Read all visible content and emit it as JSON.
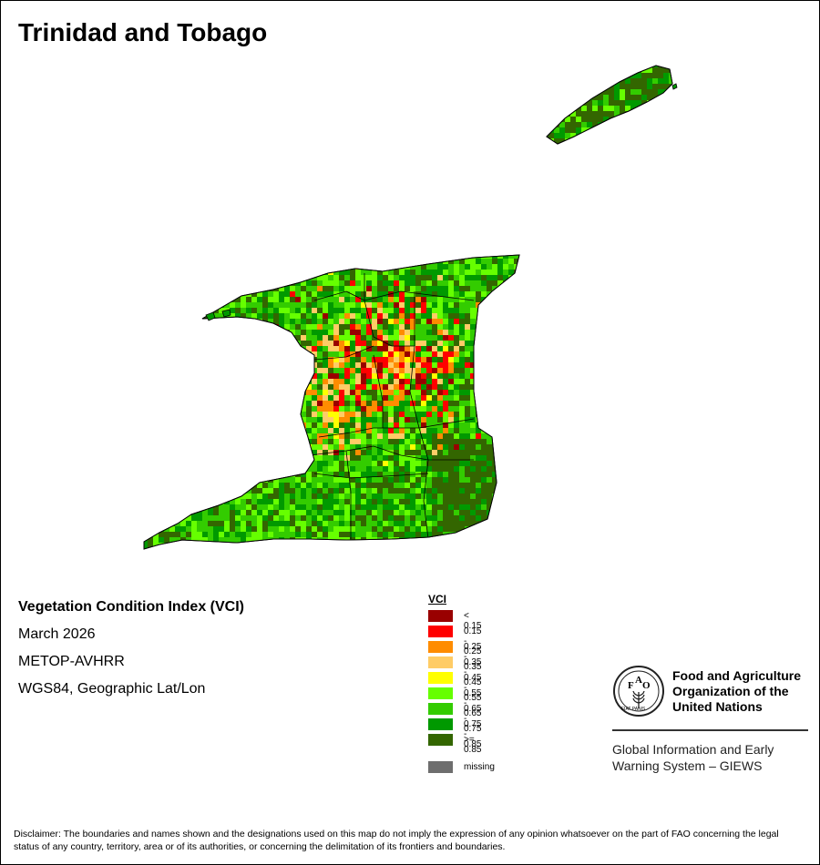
{
  "title": "Trinidad and Tobago",
  "info": {
    "index_name": "Vegetation Condition Index (VCI)",
    "period": "March 2026",
    "sensor": "METOP-AVHRR",
    "projection": "WGS84, Geographic Lat/Lon"
  },
  "legend": {
    "title": "VCI",
    "classes": [
      {
        "label": "< 0.15",
        "color": "#990000"
      },
      {
        "label": "0.15 - 0.25",
        "color": "#ff0000"
      },
      {
        "label": "0.25 - 0.35",
        "color": "#ff8c00"
      },
      {
        "label": "0.35 - 0.45",
        "color": "#ffcc66"
      },
      {
        "label": "0.45 - 0.55",
        "color": "#ffff00"
      },
      {
        "label": "0.55 - 0.65",
        "color": "#66ff00"
      },
      {
        "label": "0.65 - 0.75",
        "color": "#33cc00"
      },
      {
        "label": "0.75 - 0.85",
        "color": "#009900"
      },
      {
        "label": ">= 0.85",
        "color": "#336600"
      }
    ],
    "missing": {
      "label": "missing",
      "color": "#6e6e6e"
    }
  },
  "fao": {
    "logo_letters": [
      "F",
      "A",
      "O"
    ],
    "logo_motto": "FIAT PANIS",
    "org_name_lines": [
      "Food and Agriculture",
      "Organization of the",
      "United Nations"
    ],
    "giews_lines": [
      "Global Information and Early",
      "Warning System – GIEWS"
    ]
  },
  "disclaimer": "Disclaimer: The boundaries and names shown and the designations used on this map do not imply the expression of any opinion whatsoever on the part of FAO concerning the legal status of any country, territory, area or of its authorities, or concerning the delimitation of its frontiers and boundaries."
}
